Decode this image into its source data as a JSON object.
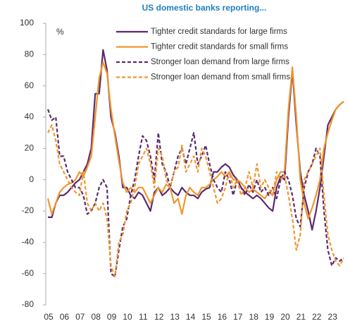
{
  "chart_data": {
    "type": "line",
    "title": "US domestic banks reporting...",
    "y_unit_label": "%",
    "categories": [
      "05",
      null,
      null,
      null,
      "06",
      null,
      null,
      null,
      "07",
      null,
      null,
      null,
      "08",
      null,
      null,
      null,
      "09",
      null,
      null,
      null,
      "10",
      null,
      null,
      null,
      "11",
      null,
      null,
      null,
      "12",
      null,
      null,
      null,
      "13",
      null,
      null,
      null,
      "14",
      null,
      null,
      null,
      "15",
      null,
      null,
      null,
      "16",
      null,
      null,
      null,
      "17",
      null,
      null,
      null,
      "18",
      null,
      null,
      null,
      "19",
      null,
      null,
      null,
      "20",
      null,
      null,
      null,
      "21",
      null,
      null,
      null,
      "22",
      null,
      null,
      null,
      "23",
      null,
      null,
      null
    ],
    "series": [
      {
        "name": "Tighter credit standards for large firms",
        "color": "#5b2a6e",
        "dashed": false,
        "values": [
          -24,
          -24,
          -15,
          -10,
          -10,
          -8,
          -5,
          -2,
          0,
          5,
          10,
          20,
          55,
          55,
          83,
          70,
          40,
          30,
          15,
          -5,
          -5,
          -10,
          -12,
          -8,
          -10,
          -15,
          -20,
          -8,
          -5,
          -10,
          -8,
          -5,
          -8,
          -10,
          -5,
          -8,
          -10,
          -10,
          -12,
          -8,
          -6,
          -5,
          5,
          5,
          8,
          10,
          8,
          3,
          0,
          -5,
          -8,
          -10,
          -12,
          -10,
          -12,
          -15,
          -18,
          -20,
          -5,
          2,
          0,
          40,
          70,
          35,
          5,
          -10,
          -20,
          -32,
          -20,
          -5,
          15,
          35,
          40,
          45,
          48,
          50
        ]
      },
      {
        "name": "Tighter credit standards for small firms",
        "color": "#f0962e",
        "dashed": false,
        "values": [
          -12,
          -22,
          -15,
          -8,
          -5,
          -3,
          -2,
          0,
          5,
          2,
          8,
          15,
          40,
          65,
          75,
          68,
          45,
          28,
          12,
          -2,
          -8,
          -5,
          -8,
          -5,
          -5,
          -10,
          -15,
          -10,
          -5,
          -8,
          -3,
          -5,
          -15,
          -12,
          -22,
          -10,
          -5,
          -8,
          -10,
          -5,
          -5,
          -3,
          0,
          2,
          5,
          2,
          5,
          0,
          0,
          -2,
          -5,
          -8,
          -6,
          -8,
          -10,
          -12,
          -8,
          -10,
          0,
          5,
          5,
          45,
          72,
          40,
          0,
          -15,
          -25,
          -18,
          -10,
          0,
          20,
          30,
          38,
          45,
          48,
          50
        ]
      },
      {
        "name": "Stronger loan demand from large firms",
        "color": "#5b2a6e",
        "dashed": true,
        "values": [
          45,
          38,
          40,
          15,
          15,
          5,
          0,
          -5,
          -5,
          -10,
          -22,
          -20,
          -15,
          -5,
          0,
          -5,
          -60,
          -62,
          -45,
          -30,
          -25,
          -10,
          0,
          15,
          28,
          25,
          15,
          0,
          30,
          10,
          5,
          -5,
          5,
          15,
          20,
          10,
          20,
          30,
          10,
          15,
          22,
          10,
          0,
          -5,
          -8,
          5,
          0,
          -10,
          0,
          -5,
          -10,
          -3,
          -8,
          0,
          -8,
          -5,
          -10,
          -5,
          -12,
          0,
          5,
          0,
          -10,
          -25,
          -30,
          -5,
          5,
          10,
          20,
          15,
          -20,
          -45,
          -55,
          -50,
          -52,
          -50
        ]
      },
      {
        "name": "Stronger loan demand from small firms",
        "color": "#f0962e",
        "dashed": true,
        "values": [
          30,
          35,
          25,
          10,
          5,
          0,
          -5,
          -8,
          -10,
          5,
          -15,
          -20,
          -15,
          -20,
          -15,
          -25,
          -55,
          -62,
          -40,
          -35,
          -20,
          -15,
          -5,
          10,
          15,
          20,
          10,
          -5,
          20,
          15,
          0,
          -5,
          5,
          8,
          22,
          5,
          10,
          15,
          5,
          20,
          15,
          5,
          -5,
          -15,
          -12,
          -5,
          5,
          -5,
          0,
          -10,
          -5,
          5,
          -5,
          10,
          -5,
          0,
          -5,
          -10,
          5,
          0,
          3,
          -10,
          -25,
          -45,
          -35,
          0,
          5,
          10,
          15,
          20,
          -10,
          -35,
          -45,
          -52,
          -55,
          -50
        ]
      }
    ],
    "ylim": [
      -80,
      100
    ],
    "yticks": [
      -80,
      -60,
      -40,
      -20,
      0,
      20,
      40,
      60,
      80,
      100
    ]
  }
}
